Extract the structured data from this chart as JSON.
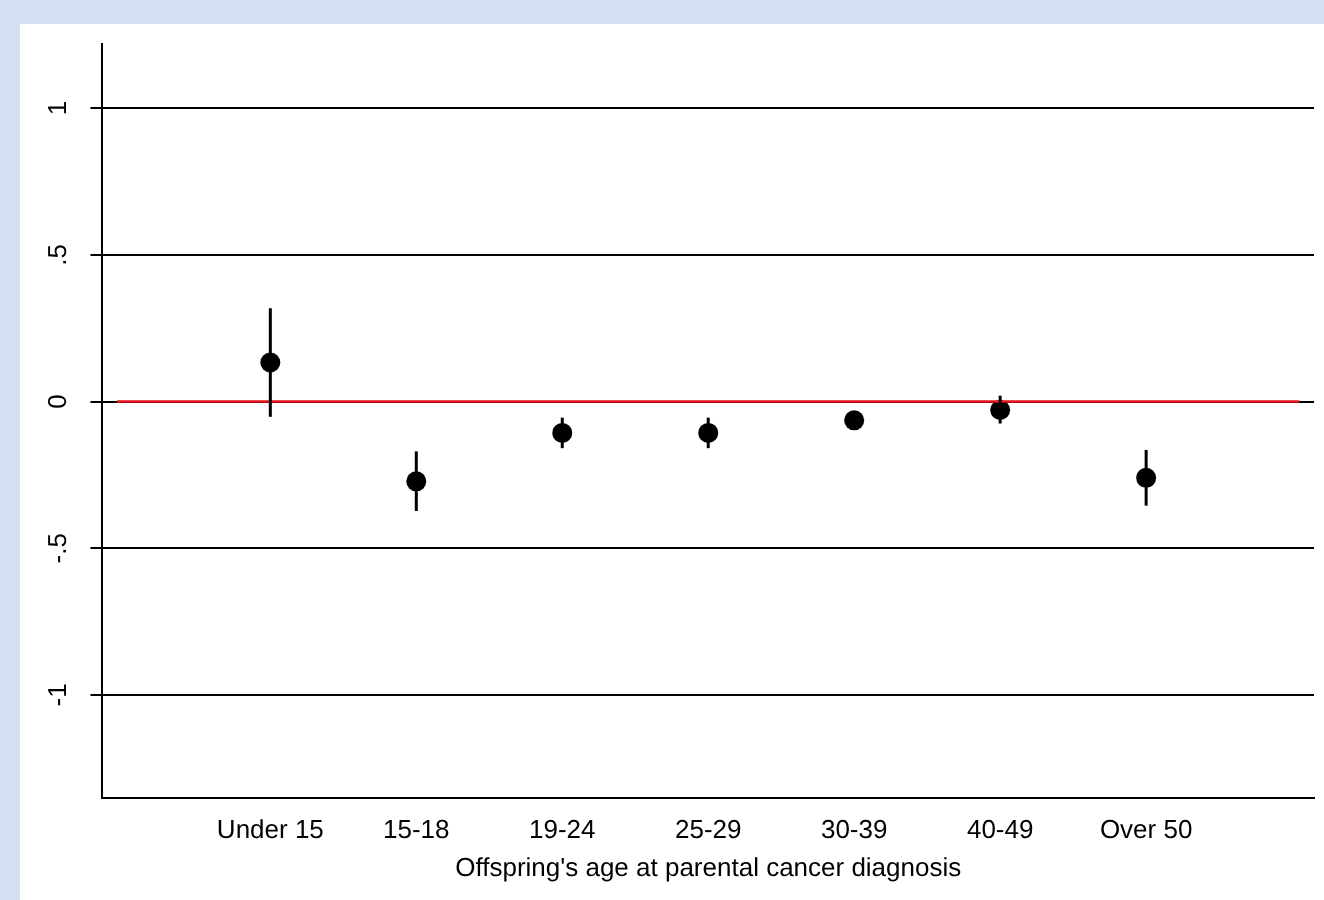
{
  "chart_data": {
    "type": "scatter",
    "xlabel": "Offspring's age at parental cancer diagnosis",
    "categories": [
      "Under 15",
      "15-18",
      "19-24",
      "25-29",
      "30-39",
      "40-49",
      "Over 50"
    ],
    "series": [
      {
        "color": "#000000",
        "values": [
          0.133,
          -0.272,
          -0.107,
          -0.107,
          -0.064,
          -0.029,
          -0.26
        ],
        "errors": [
          [
            -0.052,
            0.318
          ],
          [
            -0.373,
            -0.17
          ],
          [
            -0.159,
            -0.055
          ],
          [
            -0.159,
            -0.055
          ],
          [
            -0.08,
            -0.045
          ],
          [
            -0.075,
            0.02
          ],
          [
            -0.355,
            -0.165
          ]
        ]
      }
    ],
    "ylim": [
      -1.35,
      1.22
    ],
    "yticks": [
      {
        "value": -1,
        "label": "-1"
      },
      {
        "value": -0.5,
        "label": "-.5"
      },
      {
        "value": 0,
        "label": "0"
      },
      {
        "value": 0.5,
        "label": ".5"
      },
      {
        "value": 1,
        "label": "1"
      }
    ],
    "ref_lines": [
      {
        "axis": "y",
        "value": 0,
        "color": "#e8141b"
      }
    ],
    "grid": "y",
    "marker": "circle",
    "legend": false
  }
}
